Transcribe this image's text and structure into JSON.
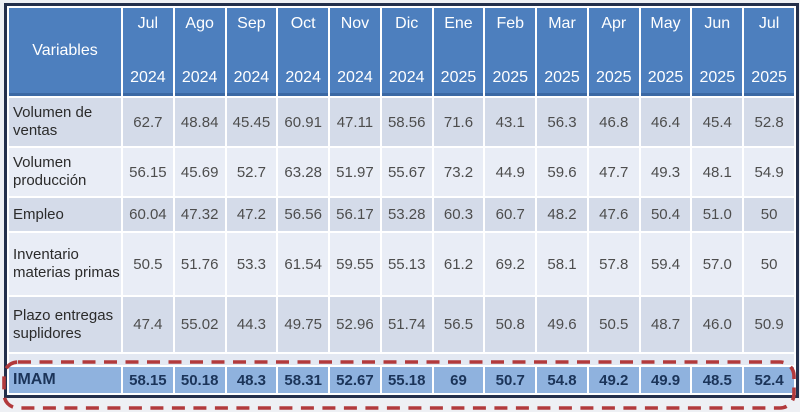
{
  "chart_data": {
    "type": "table",
    "header": {
      "variables_label": "Variables",
      "columns": [
        {
          "month": "Jul",
          "year": "2024"
        },
        {
          "month": "Ago",
          "year": "2024"
        },
        {
          "month": "Sep",
          "year": "2024"
        },
        {
          "month": "Oct",
          "year": "2024"
        },
        {
          "month": "Nov",
          "year": "2024"
        },
        {
          "month": "Dic",
          "year": "2024"
        },
        {
          "month": "Ene",
          "year": "2025"
        },
        {
          "month": "Feb",
          "year": "2025"
        },
        {
          "month": "Mar",
          "year": "2025"
        },
        {
          "month": "Apr",
          "year": "2025"
        },
        {
          "month": "May",
          "year": "2025"
        },
        {
          "month": "Jun",
          "year": "2025"
        },
        {
          "month": "Jul",
          "year": "2025"
        }
      ]
    },
    "rows": [
      {
        "label": "Volumen de ventas",
        "values": [
          "62.7",
          "48.84",
          "45.45",
          "60.91",
          "47.11",
          "58.56",
          "71.6",
          "43.1",
          "56.3",
          "46.8",
          "46.4",
          "45.4",
          "52.8"
        ]
      },
      {
        "label": "Volumen producción",
        "values": [
          "56.15",
          "45.69",
          "52.7",
          "63.28",
          "51.97",
          "55.67",
          "73.2",
          "44.9",
          "59.6",
          "47.7",
          "49.3",
          "48.1",
          "54.9"
        ]
      },
      {
        "label": "Empleo",
        "values": [
          "60.04",
          "47.32",
          "47.2",
          "56.56",
          "56.17",
          "53.28",
          "60.3",
          "60.7",
          "48.2",
          "47.6",
          "50.4",
          "51.0",
          "50"
        ]
      },
      {
        "label": "Inventario materias primas",
        "values": [
          "50.5",
          "51.76",
          "53.3",
          "61.54",
          "59.55",
          "55.13",
          "61.2",
          "69.2",
          "58.1",
          "57.8",
          "59.4",
          "57.0",
          "50"
        ]
      },
      {
        "label": "Plazo entregas suplidores",
        "values": [
          "47.4",
          "55.02",
          "44.3",
          "49.75",
          "52.96",
          "51.74",
          "56.5",
          "50.8",
          "49.6",
          "50.5",
          "48.7",
          "46.0",
          "50.9"
        ]
      }
    ],
    "footer_row": {
      "label": "IMAM",
      "values": [
        "58.15",
        "50.18",
        "48.3",
        "58.31",
        "52.67",
        "55.18",
        "69",
        "50.7",
        "54.8",
        "49.2",
        "49.9",
        "48.5",
        "52.4"
      ],
      "highlighted": true
    }
  },
  "colors": {
    "header_bg": "#4d7fbe",
    "header_text": "#ffffff",
    "row_alt_dark": "#d4dbe9",
    "row_alt_light": "#e9edf6",
    "imam_row_bg": "#8fb2de",
    "imam_row_text": "#1b3459",
    "value_text": "#4d4d4d",
    "table_border": "#232f4b",
    "highlight_dashed_border": "#b23a3c",
    "page_bg": "#eef0f4"
  }
}
